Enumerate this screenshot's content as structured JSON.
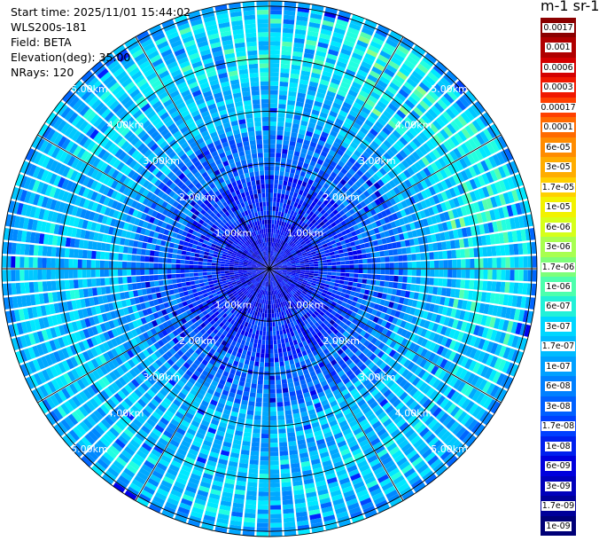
{
  "header": {
    "start_time": "Start time: 2025/11/01 15:44:02",
    "instrument": "WLS200s-181",
    "field": "Field: BETA",
    "elevation": "Elevation(deg): 35.00",
    "nrays": "NRays: 120"
  },
  "colorbar": {
    "unit_title": "m-1 sr-1",
    "labels": [
      "0.0017",
      "0.001",
      "0.0006",
      "0.0003",
      "0.00017",
      "0.0001",
      "6e-05",
      "3e-05",
      "1.7e-05",
      "1e-05",
      "6e-06",
      "3e-06",
      "1.7e-06",
      "1e-06",
      "6e-07",
      "3e-07",
      "1.7e-07",
      "1e-07",
      "6e-08",
      "3e-08",
      "1.7e-08",
      "1e-08",
      "6e-09",
      "3e-09",
      "1.7e-09",
      "1e-09"
    ],
    "colors": [
      "#8b0000",
      "#b00000",
      "#d40000",
      "#f01800",
      "#ff4000",
      "#ff6a00",
      "#ff8c00",
      "#ffad00",
      "#ffd000",
      "#f2f200",
      "#d6ff1a",
      "#a8ff50",
      "#7dff7a",
      "#4dffad",
      "#22f0d8",
      "#00d6ff",
      "#00bbff",
      "#00a0ff",
      "#0080ff",
      "#0060ff",
      "#0040ff",
      "#0020ee",
      "#0000dd",
      "#0000bb",
      "#000099",
      "#000077"
    ]
  },
  "chart_data": {
    "type": "heatmap",
    "projection": "polar (PPI scan)",
    "field": "BETA",
    "elevation_deg": 35.0,
    "n_rays": 120,
    "range_ring_labels": [
      "1.00km",
      "2.00km",
      "3.00km",
      "4.00km",
      "5.00km"
    ],
    "range_rings_km": [
      1,
      2,
      3,
      4,
      5
    ],
    "colorscale": "log",
    "value_range": [
      1e-09,
      0.0017
    ],
    "description_of_values": "Backscatter ~1e-09 to 1e-08 within ~2 km, ~3e-08 to 1e-07 between 2 and 5 km, local maxima ~1.7e-07 to 3e-07 near 4 km to the north-east"
  }
}
